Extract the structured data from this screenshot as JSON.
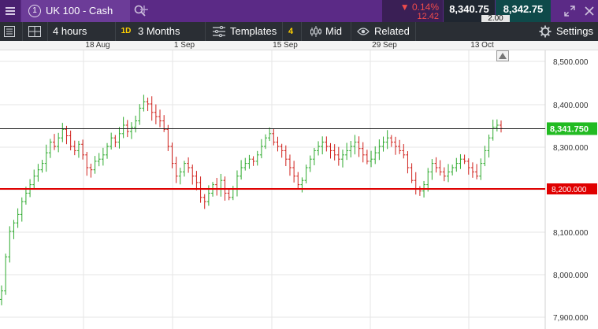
{
  "header": {
    "tab_number": "1",
    "instrument": "UK 100 - Cash",
    "change_pct": "▼ 0.14%",
    "change_abs": "12.42",
    "sell_price": "8,340.75",
    "buy_price": "8,342.75",
    "spread": "2.00"
  },
  "toolbar": {
    "interval": "4 hours",
    "interval_badge": "1D",
    "range": "3 Months",
    "templates": "Templates",
    "studies_count": "4",
    "price_type": "Mid",
    "related": "Related",
    "settings": "Settings"
  },
  "colors": {
    "up": "#2eaa2e",
    "down": "#d0211c",
    "support_line": "#e00000",
    "current_price": "#22bb22",
    "header_bg": "#5b2a86"
  },
  "chart_data": {
    "type": "line",
    "style": "ohlc-bars",
    "instrument": "UK 100 - Cash",
    "x_labels": [
      "18 Aug",
      "1 Sep",
      "15 Sep",
      "29 Sep",
      "13 Oct"
    ],
    "y_labels": [
      "8,500.000",
      "8,400.000",
      "8,300.000",
      "8,200.000",
      "8,100.000",
      "8,000.000",
      "7,900.000"
    ],
    "ylim": [
      7890,
      8520
    ],
    "grid": true,
    "current_price": 8341.75,
    "current_price_label": "8,341.750",
    "support_level": 8200,
    "support_label": "8,200.000",
    "series": [
      {
        "values": [
          7960,
          8040,
          8100,
          8120,
          8140,
          8170,
          8190,
          8210,
          8230,
          8245,
          8260,
          8285,
          8310,
          8300,
          8320,
          8340,
          8325,
          8300,
          8290,
          8305,
          8280,
          8250,
          8245,
          8265,
          8270,
          8280,
          8300,
          8320,
          8310,
          8330,
          8350,
          8335,
          8345,
          8360,
          8390,
          8405,
          8400,
          8380,
          8370,
          8360,
          8340,
          8300,
          8260,
          8230,
          8240,
          8260,
          8250,
          8230,
          8215,
          8180,
          8170,
          8190,
          8210,
          8200,
          8220,
          8190,
          8180,
          8200,
          8230,
          8250,
          8260,
          8270,
          8265,
          8280,
          8300,
          8320,
          8330,
          8310,
          8300,
          8290,
          8270,
          8250,
          8230,
          8210,
          8220,
          8250,
          8270,
          8290,
          8300,
          8310,
          8300,
          8290,
          8280,
          8270,
          8280,
          8290,
          8300,
          8310,
          8295,
          8280,
          8265,
          8270,
          8285,
          8300,
          8310,
          8320,
          8310,
          8300,
          8290,
          8280,
          8250,
          8220,
          8200,
          8195,
          8210,
          8240,
          8260,
          8250,
          8240,
          8230,
          8240,
          8250,
          8260,
          8270,
          8265,
          8250,
          8240,
          8230,
          8260,
          8290,
          8320,
          8345,
          8350,
          8342
        ]
      }
    ]
  }
}
